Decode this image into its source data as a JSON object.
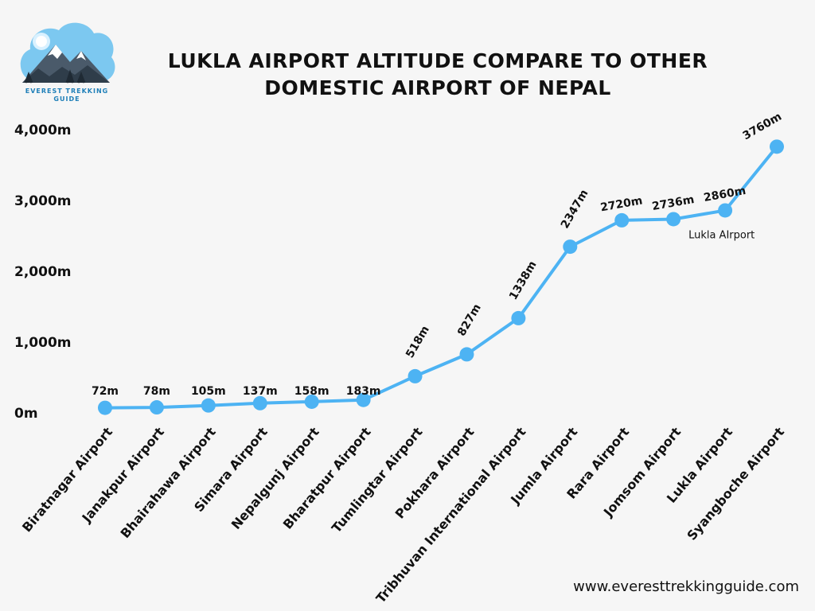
{
  "logo": {
    "icon": "mountain-logo-icon",
    "text_line1": "EVEREST TREKKING",
    "text_line2": "GUIDE"
  },
  "title": {
    "line1": "LUKLA AIRPORT ALTITUDE COMPARE TO OTHER",
    "line2": "DOMESTIC AIRPORT OF NEPAL"
  },
  "footer": {
    "url": "www.everesttrekkingguide.com"
  },
  "colors": {
    "line": "#4db3f3",
    "point": "#4db3f3",
    "text": "#111111",
    "background": "#f6f6f6"
  },
  "chart_data": {
    "type": "line",
    "title": "LUKLA AIRPORT ALTITUDE COMPARE TO OTHER DOMESTIC AIRPORT OF NEPAL",
    "categories": [
      "Biratnagar Airport",
      "Janakpur Airport",
      "Bhairahawa Airport",
      "Simara Airport",
      "Nepalgunj Airport",
      "Bharatpur Airport",
      "Tumlingtar Airport",
      "Pokhara Airport",
      "Tribhuvan International Airport",
      "Jumla Airport",
      "Rara Airport",
      "Jomsom Airport",
      "Lukla Airport",
      "Syangboche Airport"
    ],
    "series": [
      {
        "values": [
          72,
          78,
          105,
          137,
          158,
          183,
          518,
          827,
          1338,
          2347,
          2720,
          2736,
          2860,
          3760
        ]
      }
    ],
    "data_labels": [
      "72m",
      "78m",
      "105m",
      "137m",
      "158m",
      "183m",
      "518m",
      "827m",
      "1338m",
      "2347m",
      "2720m",
      "2736m",
      "2860m",
      "3760m"
    ],
    "ylim": [
      0,
      4000
    ],
    "yticks": [
      0,
      1000,
      2000,
      3000,
      4000
    ],
    "ytick_labels": [
      "0m",
      "1,000m",
      "2,000m",
      "3,000m",
      "4,000m"
    ],
    "annotation": {
      "category": "Lukla Airport",
      "text": "Lukla AIrport"
    },
    "grid": false,
    "xlabel": "",
    "ylabel": ""
  }
}
